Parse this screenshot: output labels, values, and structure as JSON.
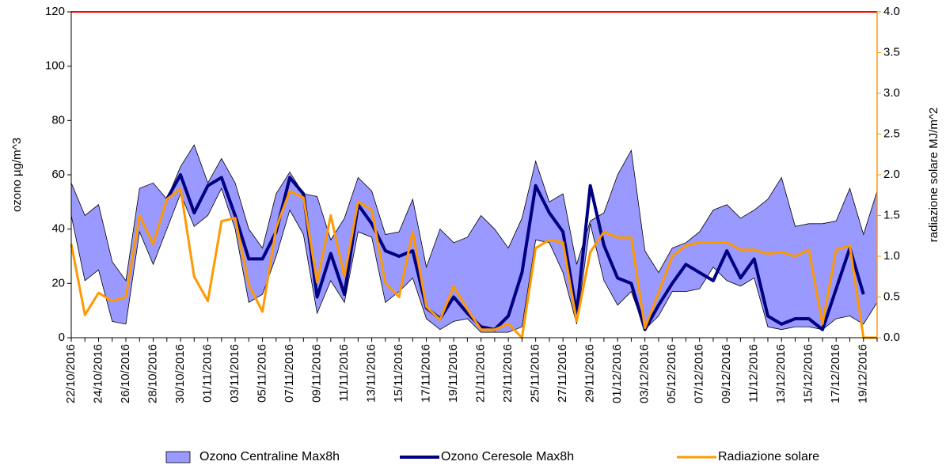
{
  "chart_data": {
    "type": "line",
    "y_label": "ozono µg/m^3",
    "y2_label": "radiazione solare MJ/m^2",
    "categories": [
      "22/10/2016",
      null,
      "24/10/2016",
      null,
      "26/10/2016",
      null,
      "28/10/2016",
      null,
      "30/10/2016",
      null,
      "01/11/2016",
      null,
      "03/11/2016",
      null,
      "05/11/2016",
      null,
      "07/11/2016",
      null,
      "09/11/2016",
      null,
      "11/11/2016",
      null,
      "13/11/2016",
      null,
      "15/11/2016",
      null,
      "17/11/2016",
      null,
      "19/11/2016",
      null,
      "21/11/2016",
      null,
      "23/11/2016",
      null,
      "25/11/2016",
      null,
      "27/11/2016",
      null,
      "29/11/2016",
      null,
      "01/12/2016",
      null,
      "03/12/2016",
      null,
      "05/12/2016",
      null,
      "07/12/2016",
      null,
      "09/12/2016",
      null,
      "11/12/2016",
      null,
      "13/12/2016",
      null,
      "15/12/2016",
      null,
      "17/12/2016",
      null,
      "19/12/2016",
      null
    ],
    "ylim": [
      0,
      120
    ],
    "yticks": [
      0,
      20,
      40,
      60,
      80,
      100,
      120
    ],
    "y2lim": [
      0,
      4
    ],
    "y2ticks": [
      {
        "value": 0,
        "label": "0.0"
      },
      0.5,
      {
        "value": 1,
        "label": "1.0"
      },
      1.5,
      {
        "value": 2,
        "label": "2.0"
      },
      2.5,
      {
        "value": 3,
        "label": "3.0"
      },
      3.5,
      {
        "value": 4,
        "label": "4.0"
      }
    ],
    "reference_line": {
      "value": 120,
      "color": "#ff0000"
    },
    "series": [
      {
        "name": "Ozono Centraline Max8h",
        "kind": "band",
        "color": "#9999ff",
        "upper": [
          57,
          45,
          49,
          28,
          21,
          55,
          57,
          51,
          63,
          71,
          57,
          66,
          57,
          40,
          33,
          53,
          61,
          53,
          52,
          36,
          44,
          59,
          54,
          38,
          39,
          51,
          26,
          40,
          35,
          37,
          45,
          40,
          33,
          44,
          65,
          50,
          53,
          27,
          43,
          46,
          60,
          69,
          32,
          24,
          33,
          35,
          39,
          47,
          49,
          44,
          47,
          51,
          59,
          41,
          42,
          42,
          43,
          55,
          38,
          54
        ],
        "lower": [
          45,
          21,
          25,
          6,
          5,
          39,
          27,
          40,
          53,
          41,
          45,
          55,
          40,
          13,
          16,
          30,
          47,
          38,
          9,
          21,
          13,
          39,
          37,
          13,
          17,
          22,
          7,
          3,
          6,
          7,
          2,
          2,
          2,
          4,
          36,
          35,
          24,
          5,
          42,
          21,
          12,
          17,
          3,
          8,
          17,
          17,
          18,
          26,
          21,
          19,
          22,
          4,
          3,
          4,
          4,
          3,
          7,
          8,
          5,
          13
        ]
      },
      {
        "name": "Ozono Ceresole Max8h",
        "kind": "line",
        "color": "#000080",
        "values": [
          null,
          null,
          null,
          null,
          null,
          null,
          null,
          51,
          60,
          46,
          56,
          59,
          45,
          29,
          29,
          39,
          59,
          53,
          15,
          31,
          16,
          49,
          42,
          32,
          30,
          32,
          11,
          7,
          15,
          9,
          4,
          3,
          8,
          24,
          56,
          46,
          39,
          9,
          56,
          34,
          22,
          20,
          3,
          12,
          20,
          27,
          24,
          21,
          32,
          22,
          29,
          8,
          5,
          7,
          7,
          3,
          18,
          33,
          16,
          null
        ]
      },
      {
        "name": "Radiazione solare",
        "kind": "line",
        "color": "#ff9900",
        "axis": "y2",
        "values": [
          1.15,
          0.28,
          0.55,
          0.45,
          0.5,
          1.5,
          1.15,
          1.7,
          1.83,
          0.75,
          0.45,
          1.43,
          1.47,
          0.65,
          0.32,
          1.35,
          1.8,
          1.72,
          0.68,
          1.5,
          0.75,
          1.67,
          1.57,
          0.67,
          0.5,
          1.3,
          0.38,
          0.22,
          0.63,
          0.35,
          0.1,
          0.1,
          0.17,
          0,
          1.1,
          1.2,
          1.17,
          0.2,
          1.05,
          1.3,
          1.23,
          1.23,
          0.12,
          0.55,
          1,
          1.13,
          1.17,
          1.17,
          1.17,
          1.08,
          1.08,
          1.03,
          1.05,
          1,
          1.08,
          0.17,
          1.08,
          1.13,
          0,
          0
        ]
      }
    ]
  }
}
